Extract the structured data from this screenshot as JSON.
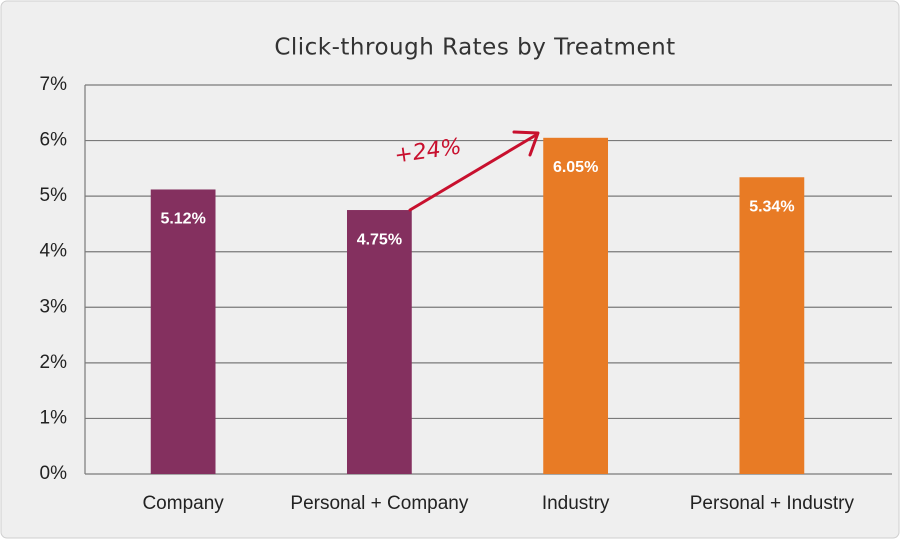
{
  "chart_data": {
    "type": "bar",
    "title": "Click-through Rates by Treatment",
    "categories": [
      "Company",
      "Personal + Company",
      "Industry",
      "Personal + Industry"
    ],
    "values": [
      5.12,
      4.75,
      6.05,
      5.34
    ],
    "value_labels": [
      "5.12%",
      "4.75%",
      "6.05%",
      "5.34%"
    ],
    "colors": [
      "#84305f",
      "#84305f",
      "#e87b25",
      "#e87b25"
    ],
    "ylim": [
      0,
      7
    ],
    "yticks": [
      {
        "value": 0,
        "label": "0%"
      },
      {
        "value": 1,
        "label": "1%"
      },
      {
        "value": 2,
        "label": "2%"
      },
      {
        "value": 3,
        "label": "3%"
      },
      {
        "value": 4,
        "label": "4%"
      },
      {
        "value": 5,
        "label": "5%"
      },
      {
        "value": 6,
        "label": "6%"
      },
      {
        "value": 7,
        "label": "7%"
      }
    ],
    "grid": true,
    "annotation": "+24%"
  }
}
